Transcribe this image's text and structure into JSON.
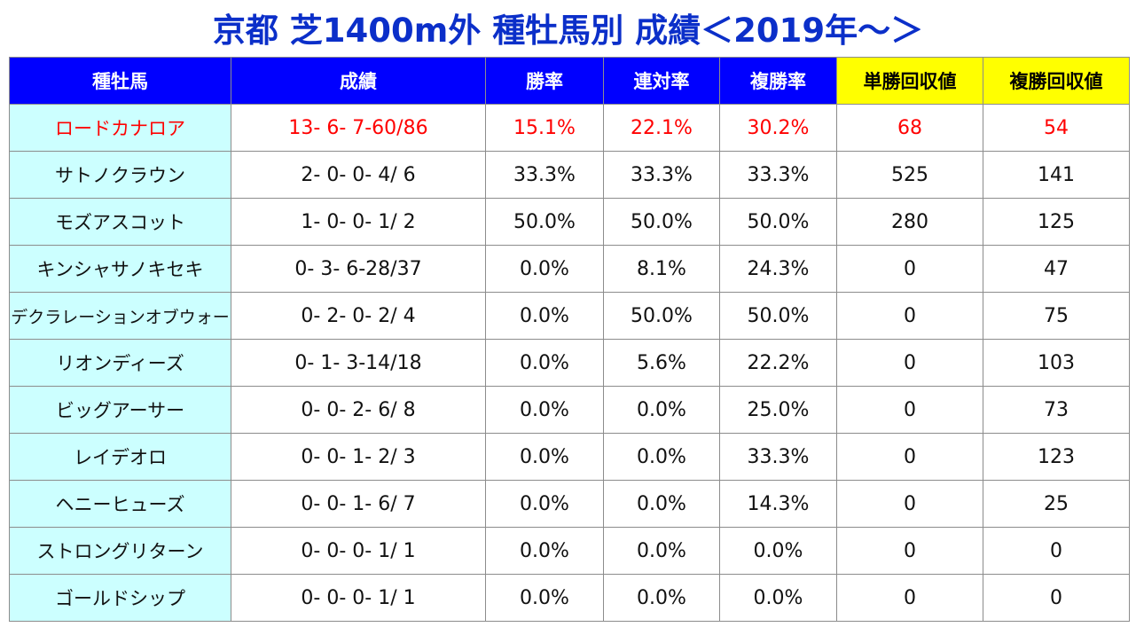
{
  "title": "京都 芝1400m外 種牡馬別 成績＜2019年～＞",
  "colors": {
    "title": "#0b2fc9",
    "header_bg": "#0000ff",
    "header_text": "#ffffff",
    "highlight_header_bg": "#ffff00",
    "sire_cell_bg": "#ccffff",
    "highlight_row_text": "#ff0000"
  },
  "table": {
    "headers": [
      "種牡馬",
      "成績",
      "勝率",
      "連対率",
      "複勝率",
      "単勝回収値",
      "複勝回収値"
    ],
    "rows": [
      {
        "sire": "ロードカナロア",
        "record": "13- 6- 7-60/86",
        "win_rate": "15.1%",
        "quinella_rate": "22.1%",
        "place_rate": "30.2%",
        "win_return": "68",
        "place_return": "54"
      },
      {
        "sire": "サトノクラウン",
        "record": "2- 0- 0- 4/ 6",
        "win_rate": "33.3%",
        "quinella_rate": "33.3%",
        "place_rate": "33.3%",
        "win_return": "525",
        "place_return": "141"
      },
      {
        "sire": "モズアスコット",
        "record": "1- 0- 0- 1/ 2",
        "win_rate": "50.0%",
        "quinella_rate": "50.0%",
        "place_rate": "50.0%",
        "win_return": "280",
        "place_return": "125"
      },
      {
        "sire": "キンシャサノキセキ",
        "record": "0- 3- 6-28/37",
        "win_rate": "0.0%",
        "quinella_rate": "8.1%",
        "place_rate": "24.3%",
        "win_return": "0",
        "place_return": "47"
      },
      {
        "sire": "デクラレーションオブウォー",
        "record": "0- 2- 0- 2/ 4",
        "win_rate": "0.0%",
        "quinella_rate": "50.0%",
        "place_rate": "50.0%",
        "win_return": "0",
        "place_return": "75"
      },
      {
        "sire": "リオンディーズ",
        "record": "0- 1- 3-14/18",
        "win_rate": "0.0%",
        "quinella_rate": "5.6%",
        "place_rate": "22.2%",
        "win_return": "0",
        "place_return": "103"
      },
      {
        "sire": "ビッグアーサー",
        "record": "0- 0- 2- 6/ 8",
        "win_rate": "0.0%",
        "quinella_rate": "0.0%",
        "place_rate": "25.0%",
        "win_return": "0",
        "place_return": "73"
      },
      {
        "sire": "レイデオロ",
        "record": "0- 0- 1- 2/ 3",
        "win_rate": "0.0%",
        "quinella_rate": "0.0%",
        "place_rate": "33.3%",
        "win_return": "0",
        "place_return": "123"
      },
      {
        "sire": "ヘニーヒューズ",
        "record": "0- 0- 1- 6/ 7",
        "win_rate": "0.0%",
        "quinella_rate": "0.0%",
        "place_rate": "14.3%",
        "win_return": "0",
        "place_return": "25"
      },
      {
        "sire": "ストロングリターン",
        "record": "0- 0- 0- 1/ 1",
        "win_rate": "0.0%",
        "quinella_rate": "0.0%",
        "place_rate": "0.0%",
        "win_return": "0",
        "place_return": "0"
      },
      {
        "sire": "ゴールドシップ",
        "record": "0- 0- 0- 1/ 1",
        "win_rate": "0.0%",
        "quinella_rate": "0.0%",
        "place_rate": "0.0%",
        "win_return": "0",
        "place_return": "0"
      }
    ]
  }
}
